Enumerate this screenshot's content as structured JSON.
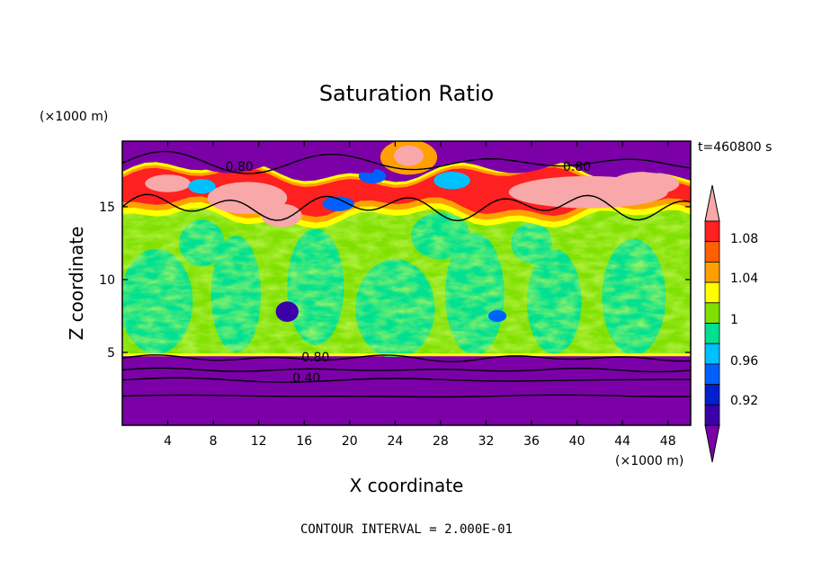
{
  "chart_data": {
    "type": "heatmap",
    "title": "Saturation Ratio",
    "xlabel": "X coordinate",
    "ylabel": "Z coordinate",
    "x_unit": "(×1000 m)",
    "y_unit": "(×1000 m)",
    "xlim": [
      0,
      50
    ],
    "ylim": [
      0,
      19.5
    ],
    "x_ticks": [
      4,
      8,
      12,
      16,
      20,
      24,
      28,
      32,
      36,
      40,
      44,
      48
    ],
    "y_ticks": [
      5,
      10,
      15
    ],
    "time_label": "t=460800 s",
    "footer": "CONTOUR INTERVAL = 2.000E-01",
    "contour_labels": [
      {
        "text": "0.80",
        "x": 10.3,
        "z": 17.6
      },
      {
        "text": "0.80",
        "x": 40.0,
        "z": 17.6
      },
      {
        "text": "0.80",
        "x": 17.0,
        "z": 4.5
      },
      {
        "text": "0.40",
        "x": 16.2,
        "z": 3.1
      }
    ],
    "colorbar": {
      "levels": [
        0.92,
        0.96,
        1,
        1.04,
        1.08
      ],
      "tick_labels": [
        "0.92",
        "0.96",
        "1",
        "1.04",
        "1.08"
      ],
      "colors": [
        "#7b00a8",
        "#3c00a8",
        "#0020d0",
        "#0060ff",
        "#00c0ff",
        "#00e090",
        "#80e000",
        "#ffff00",
        "#ffa000",
        "#ff6000",
        "#ff2020",
        "#f8a8a8"
      ]
    },
    "regions": {
      "low_dry_top_z": 4.7,
      "cloud_layer_bottom_z": 4.8,
      "cloud_layer_top_z": 15.0,
      "supersat_band_z": [
        14.5,
        17.0
      ],
      "upper_dry_z": 17.5
    }
  }
}
